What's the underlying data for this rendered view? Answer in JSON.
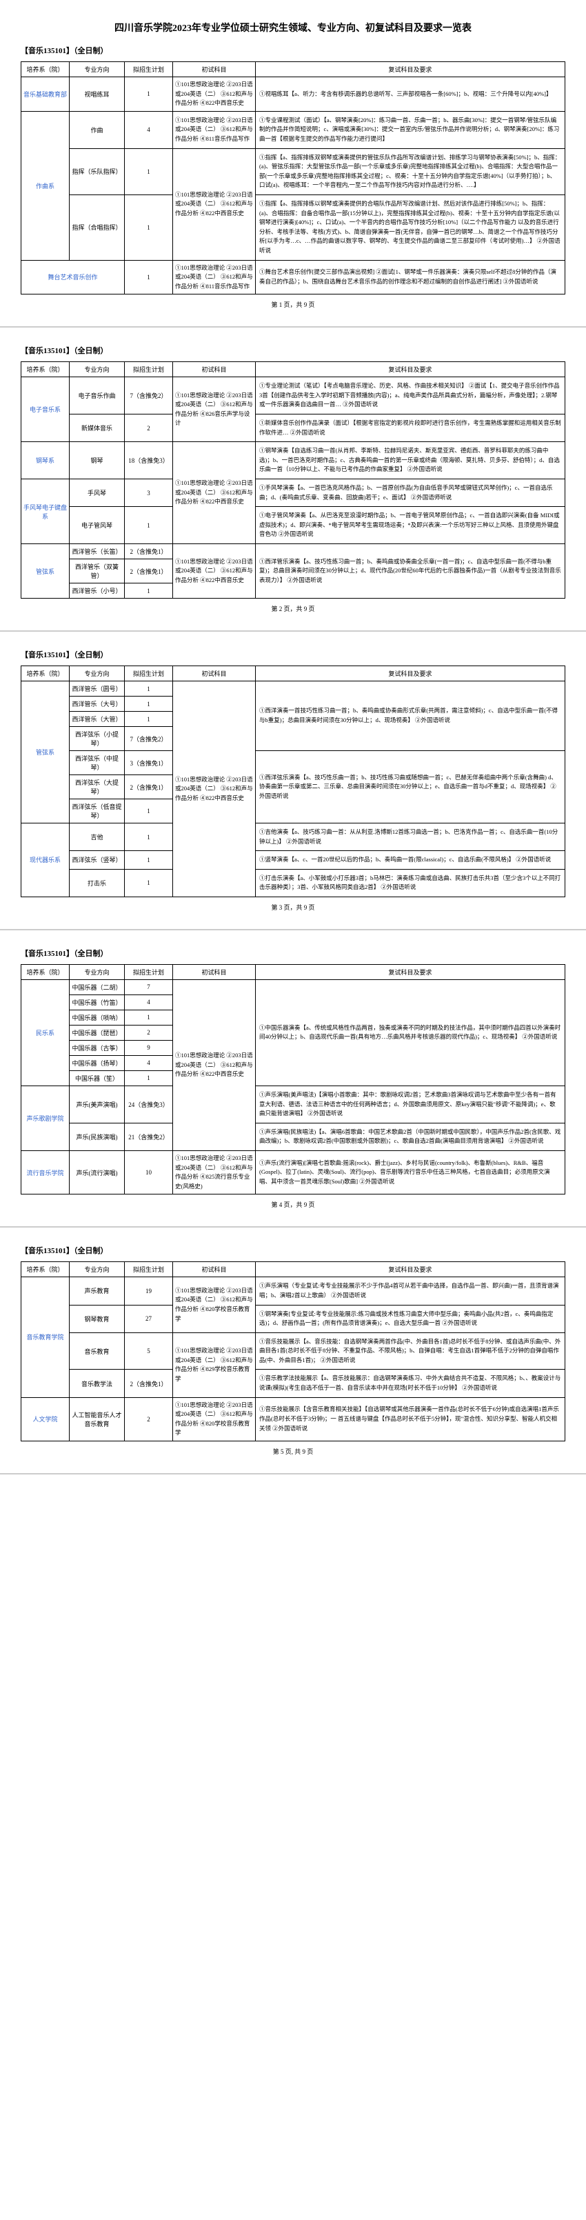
{
  "docTitle": "四川音乐学院2023年专业学位硕士研究生领域、专业方向、初复试科目及要求一览表",
  "sectionHeader": "【音乐135101】（全日制）",
  "columns": {
    "dept": "培养系（院）",
    "major": "专业方向",
    "quota": "拟招生计划",
    "initial": "初试科目",
    "retest": "复试科目及要求"
  },
  "pageNum": [
    "第 1 页，共 9 页",
    "第 2 页，共 9 页",
    "第 3 页，共 9 页",
    "第 4 页，共 9 页",
    "第 5 页, 共 9 页"
  ],
  "page1": {
    "rows": [
      {
        "dept": "音乐基础教育部",
        "major": "视唱练耳",
        "quota": "1",
        "init": "①101思想政治理论\n②203日语或204英语（二）\n③612和声与作品分析\n④822中西音乐史",
        "retest": "①视唱练耳【a、听力：考含有移调乐器的总谱听写、三声部视唱各一条[60%]；b、视唱：三个升降号以内[40%]】"
      },
      {
        "dept": "作曲系",
        "deptRowspan": 3,
        "major": "作曲",
        "quota": "4",
        "init": "①101思想政治理论\n②203日语或204英语（二）\n③612和声与作品分析\n④811音乐作品写作",
        "retest": "①专业课程测试（面试）【a、钢琴演奏[20%]：练习曲一首、乐曲一首；b、器乐曲[30%]：提交一首钢琴/管弦乐队编制的作品并作简短说明；c、演唱或演奏[30%]：提交一首室内乐/管弦乐作品并作说明分析；d、钢琴演奏[20%]：练习曲一首【根据考生提交的作品写作能力进行提问】"
      },
      {
        "major": "指挥（乐队指挥）",
        "quota": "1",
        "initRowspan": 2,
        "init": "①101思想政治理论\n②203日语或204英语（二）\n③612和声与作品分析\n④822中西音乐史",
        "retest": "①指挥【a、指挥排练双钢琴或演奏提供的管弦乐队作品所写改编谱计划、排练学习与钢琴协表演奏[50%]；b、指挥：(a)、管弦乐指挥：大型管弦乐作品一部(一个乐章或多乐章)完整地指挥排练其全过程(b)、合唱指挥：大型合唱作品一部(一个乐章或多乐章)完整地指挥排练其全过程；c、视奏：十至十五分钟内自学指定乐谱[40%]（以手势打拍）；b、口试(a)、视唱练耳：一个半音程内,一至二个作品写作技巧内容对作品进行分析、….】"
      },
      {
        "major": "指挥（合唱指挥）",
        "quota": "1",
        "retest": "①指挥【a、指挥排练以钢琴或演奏提供的合唱队作品所写改编谱计划、然后对该作品进行排练[50%]；b、指挥：(a)、合唱指挥：自备合唱作品一部(15分钟以上)，完整指挥排练其全过程(b)、视奏：十至十五分钟内自学指定乐谱(以钢琴进行演奏)[40%]；c、口试(a)、一个半音内的合唱作品写作技巧分析[10%]（以二个作品写作能力 以及的音乐进行分析、考核手法等、考核(方式)、b、简谱自弹演奏一首(无伴音，自弹一首已的钢琴…b、简谱之一个作品写作技巧分析[以手为考…c、…作品的曲谱以数字导、钢琴的、考生提交作品的曲谱二至三部复印件（考试时使用)…】\n②外国语听说"
      },
      {
        "dept": "舞台艺术音乐创作系",
        "major": "舞台艺术音乐创作",
        "quota": "1",
        "init": "①101思想政治理论\n②203日语或204英语（二）\n③612和声与作品分析\n④811音乐作品写作",
        "retest": "①舞台艺术音乐创作[提交三部作品演出视频]\n②面试[1、钢琴或一件乐器演奏：演奏只限self不超过8分钟的作品（演奏自己的作品）；b、围绕自选舞台艺术音乐作品的创作理念和不超过编制的自创作品进行阐述]\n③外国语听说"
      }
    ]
  },
  "page2": {
    "rows": [
      {
        "dept": "电子音乐系",
        "deptRowspan": 2,
        "major": "电子音乐作曲",
        "quota": "7（含推免2）",
        "initRowspan": 2,
        "init": "①101思想政治理论\n②203日语或204英语（二）\n③612和声与作品分析\n④826音乐声学与设计",
        "retest": "①专业理论测试（笔试）【考点电脑音乐理论、历史、风格、作曲技术相关知识】\n②面试【1、提交电子音乐创作作品3首【创建作品供考生入学时初期下音频播放(内容)；a、纯电声类作品所具曲式分析，篇幅分析，声像处理】；2.钢琴或一件乐器演奏自选曲目一首…\n③外国语听说"
      },
      {
        "major": "新媒体音乐",
        "quota": "2",
        "retest": "①新媒体音乐创作作品演录（面试）【根据考官指定的影视片段即时进行音乐创作，考生需熟练掌握和运用相关音乐制作软件进…\n②外国语听说"
      },
      {
        "dept": "钢琴系",
        "major": "钢琴",
        "quota": "18（含推免3）",
        "initRowspan": 3,
        "init": "①101思想政治理论\n②203日语或204英语（二）\n③612和声与作品分析\n④822中西音乐史",
        "retest": "①钢琴演奏【自选练习曲一首(从肖邦、李斯特、拉赫玛尼诺夫、斯克里亚宾、德彪西、普罗科菲耶夫的练习曲中选)；b、一首巴洛克时期作品；c、古典奏鸣曲一首的第一乐章或终曲（限海顿、莫扎特、贝多芬、舒伯特）；d、自选乐曲一首（10分钟以上、不能与已考作品的作曲家重复】\n②外国语听说"
      },
      {
        "dept": "手风琴电子键盘系",
        "deptRowspan": 2,
        "major": "手风琴",
        "quota": "3",
        "retest": "①手风琴演奏【a、一首巴洛克风格作品；b、一首原创作品(为自由低音手风琴或键钮式风琴创作)；c、一首自选乐曲；d、(奏鸣曲式乐章、变奏曲、回旋曲)若干；e、面试】\n②外国语师听说"
      },
      {
        "major": "电子管风琴",
        "quota": "1",
        "retest": "①电子管风琴演奏【a、从巴洛克至浪漫时期作品；b、一首电子管风琴原创作品；c、一首自选即兴演奏(自备 MIDI或虚拟技术)；d、即兴演奏、*电子管风琴考生需现场运奏；*及即兴表演:一个乐坊写好三种以上风格、且须使用外键盘音色功\n②外国语听说"
      },
      {
        "dept": "管弦系",
        "deptRowspan": 3,
        "major": "西洋管乐（长笛）",
        "quota": "2（含推免1）",
        "initRowspan": 3,
        "init": "①101思想政治理论\n②203日语或204英语（二）\n③612和声与作品分析\n④822中西音乐史",
        "retestRowspan": 3,
        "retest": "①西洋管乐演奏【a、技巧性练习曲一首；b、奏鸣曲或协奏曲全乐章(一首一首)；c、自选中型乐曲一首(不得与b重复)；总曲目演奏时间须在30分钟以上；d、现代作品(20世纪60年代后的七乐器独奏作品)一首（从剧考专业技法到音乐表现力）】\n②外国语听说"
      },
      {
        "major": "西洋管乐（双簧管）",
        "quota": "2（含推免1）"
      },
      {
        "major": "西洋管乐（小号）",
        "quota": "1"
      }
    ]
  },
  "page3": {
    "rows": [
      {
        "dept": "管弦系",
        "deptRowspan": 7,
        "major": "西洋管乐（圆号）",
        "quota": "1",
        "initRowspan": 10,
        "init": "①101思想政治理论\n②203日语或204英语（二）\n③612和声与作品分析\n④822中西音乐史",
        "retestRowspan": 4,
        "retest": "①西洋演奏一首技巧性练习曲一首；b、奏鸣曲或协奏曲形式乐章(共两首，需注意倾斜)；c、自选中型乐曲一首(不得与b重复)；总曲目演奏时间须在30分钟以上；d、现场视奏】\n②外国语听说"
      },
      {
        "major": "西洋管乐（大号）",
        "quota": "1"
      },
      {
        "major": "西洋管乐（大管）",
        "quota": "1"
      },
      {
        "major": "西洋弦乐（小提琴）",
        "quota": "7（含推免2）"
      },
      {
        "major": "西洋弦乐（中提琴）",
        "quota": "3（含推免1）",
        "retestRowspan": 3,
        "retest": "①西洋弦乐演奏【a、技巧性乐曲一首；b、技巧性练习曲或随想曲一首；c、巴赫无伴奏组曲中两个乐章(含舞曲) d、协奏曲第一乐章或第二、三乐章、总曲目演奏时间须在30分钟以上；e、自选乐曲一首与d不重复；d、现场视奏】\n②外国语听说"
      },
      {
        "major": "西洋弦乐（大提琴）",
        "quota": "2（含推免1）"
      },
      {
        "major": "西洋弦乐（低音提琴）",
        "quota": "1"
      },
      {
        "dept": "现代器乐系",
        "deptRowspan": 3,
        "major": "吉他",
        "quota": "1",
        "retest": "①吉他演奏【a、技巧练习曲一首：从从利亚.洛博斯12首练习曲选一首；b、巴洛克作品一首；c、自选乐曲一首(10分钟以上)】\n②外国语听说"
      },
      {
        "major": "西洋弦乐（竖琴）",
        "quota": "1",
        "retest": "①竖琴演奏【a、c、一首20世纪以后的作品；b、奏鸣曲一首(限classical)；c、自选乐曲(不限风格)】\n②外国语听说"
      },
      {
        "major": "打击乐",
        "quota": "1",
        "retest": "①打击乐演奏【a、小军鼓或小打乐器3首；b马林巴：演奏练习曲或自选曲、民族打击乐共3首（至少含3个以上不同打击乐器种类）；3首、小军鼓风格同类自选2首】\n②外国语听说"
      }
    ]
  },
  "page4": {
    "rows": [
      {
        "dept": "民乐系",
        "deptRowspan": 7,
        "major": "中国乐器（二胡）",
        "quota": "7",
        "initRowspan": 9,
        "init": "①101思想政治理论\n②203日语或204英语（二）\n③612和声与作品分析\n④822中西音乐史",
        "retestRowspan": 7,
        "retest": "①中国乐器演奏【a、传统或风格性作品两首，独奏或演奏不同的时期及的技法作品，其中须时期作品四首以外演奏时间40分钟以上；b、自选现代乐曲一首(具有地方…乐曲风格并考核谱乐器的现代作品)；c、现场视奏】\n②外国语听说"
      },
      {
        "major": "中国乐器（竹笛）",
        "quota": "4"
      },
      {
        "major": "中国乐器（唢呐）",
        "quota": "1"
      },
      {
        "major": "中国乐器（琵琶）",
        "quota": "2"
      },
      {
        "major": "中国乐器（古筝）",
        "quota": "9"
      },
      {
        "major": "中国乐器（扬琴）",
        "quota": "4"
      },
      {
        "major": "中国乐器（笙）",
        "quota": "1"
      },
      {
        "dept": "声乐歌剧学院",
        "deptRowspan": 2,
        "major": "声乐(美声演唱)",
        "quota": "24（含推免3）",
        "retest": "①声乐演唱(美声唱法)【演唱小首歌曲：其中：歌剧咏叹调2首；艺术歌曲3首演咏叹调与艺术歌曲中至少各有一首有意大利语、德语、法语三种语言中的任何两种语言；d、外国歌曲须用原文、原key演唱只能\"移调\"不能降调)；e、歌曲只能背谱演唱】\n②外国语听说"
      },
      {
        "major": "声乐(民族演唱)",
        "quota": "21（含推免2）",
        "retest": "①声乐演唱(民族唱法)【a、演唱6首歌曲：中国艺术歌曲2首（中国新时期或中国民歌），中国声乐作品2首(含民歌、戏曲改编)；b、歌剧咏叹调2首(中国歌剧或外国歌剧)；c、歌曲自选2首曲(演唱曲目须用背谱演唱】\n②外国语听说"
      },
      {
        "dept": "流行音乐学院",
        "major": "声乐(流行演唱)",
        "quota": "10",
        "init": "①101思想政治理论\n②203日语或204英语（二）\n③612和声与作品分析\n④825流行音乐专业史(风格史)",
        "retest": "①声乐(流行演唱)[演唱七首歌曲:摇滚(rock)、爵士(jazz)、乡村与民谣(country/folk)、布鲁斯(blues)、R&B、福音(Gospel)、拉丁(latin)、灵魂(Soul)、流行(pop)、音乐剧等流行音乐中任选三种风格，七首自选曲目；必须用原文演唱、其中须含一首灵魂乐歌(Soul)歌曲]\n②外国语听说"
      }
    ]
  },
  "page5": {
    "rows": [
      {
        "dept": "音乐教育学院",
        "deptRowspan": 4,
        "major": "声乐教育",
        "quota": "19",
        "initRowspan": 2,
        "init": "①101思想政治理论\n②203日语或204英语（二）\n③612和声与作品分析\n④820学校音乐教育学",
        "retest": "①声乐演唱（专业复试:考专业技能展示不少于作品4首可从若干曲中选择，自选作品一首、即兴曲)一首，且须背谱演唱；b、演唱2首以上歌曲）\n②外国语听说"
      },
      {
        "major": "钢琴教育",
        "quota": "27",
        "retest": "①钢琴演奏[专业复试:考专业技能展示:练习曲或技术性练习曲意大师中型乐曲；奏鸣曲小品(共2首，c、奏鸣曲指定选)；d、舒画作品一首；(所有作品须背谱演奏)；e、自选大型乐曲一首\n②外国语听说"
      },
      {
        "major": "音乐教育",
        "quota": "5",
        "initRowspan": 2,
        "init": "①101思想政治理论\n②203日语或204英语（二）\n③612和声与作品分析\n④829学校音乐教育学",
        "retest": "①音乐技能展示【a、音乐技能：自选钢琴演奏两首作品(中、外曲目各1首)总时长不低于8分钟、或自选声乐曲(中、外曲目各1首(总时长不低于8分钟、不重复作品、不限风格)；b、自弹自唱：考生自选1首弹唱不低于2分钟的自弹自唱作品(中、外曲目各1首)；\n②外国语听说"
      },
      {
        "major": "音乐教学法",
        "quota": "2（含推免1）",
        "retest": "①音乐教学法技能展示【a、音乐技能展示：自选钢琴演奏练习、中外大曲结合共不造复、不限风格；b、、教案设计与说课(模拟)(考生自选不低于一首、自音乐读本中并在现场[时长不低于10分钟】\n②外国语听说"
      },
      {
        "dept": "人文学院",
        "major": "人工智能音乐人才音乐教育",
        "quota": "2",
        "init": "①101思想政治理论\n②203日语或204英语（二）\n③612和声与作品分析\n④820学校音乐教育学",
        "retest": "①音乐技能展示【含音乐教育相关技能】【自选钢琴或其他乐器演奏一首作品(总时长不低于6分钟)或自选演唱1首声乐作品(总时长不低于3分钟)；一\n首五线谱与键盘【作品总时长不低于5分钟】，现\"混合性、知识分享型、智能人机交相关领\n②外国语听说"
      }
    ]
  }
}
